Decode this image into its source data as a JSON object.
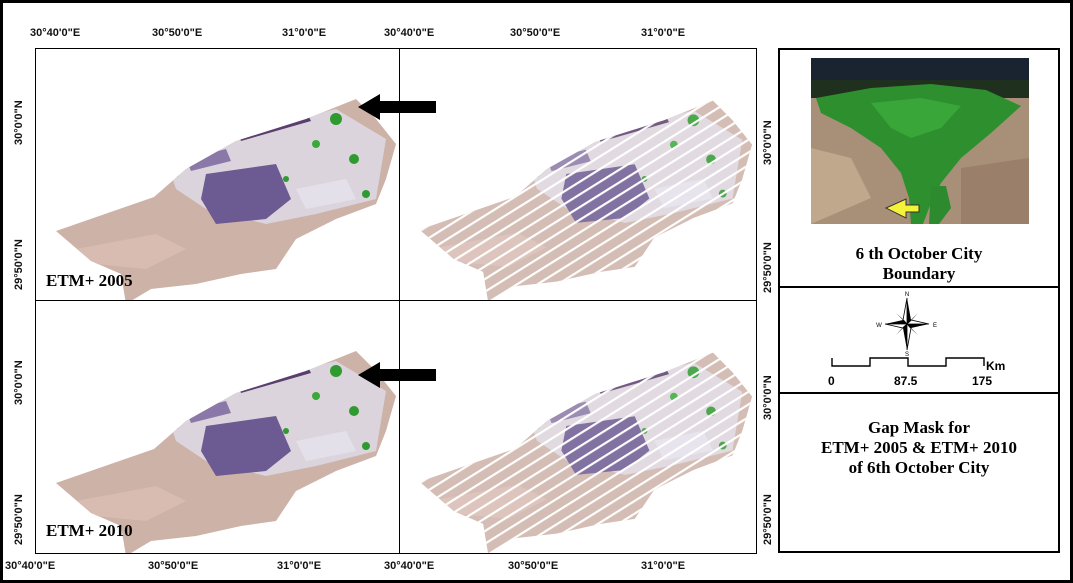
{
  "coords": {
    "top": [
      "30°40'0\"E",
      "30°50'0\"E",
      "31°0'0\"E",
      "30°40'0\"E",
      "30°50'0\"E",
      "31°0'0\"E"
    ],
    "bottom": [
      "30°40'0\"E",
      "30°50'0\"E",
      "31°0'0\"E",
      "30°40'0\"E",
      "30°50'0\"E",
      "31°0'0\"E"
    ],
    "left": [
      "30°0'0\"N",
      "29°50'0\"N",
      "30°0'0\"N",
      "29°50'0\"N"
    ],
    "right": [
      "30°0'0\"N",
      "29°50'0\"N",
      "30°0'0\"N",
      "29°50'0\"N"
    ]
  },
  "panels": {
    "top_left_label": "ETM+ 2005",
    "bottom_left_label": "ETM+ 2010"
  },
  "location_map": {
    "title_line1": "6 th October City",
    "title_line2": "Boundary"
  },
  "compass": {
    "n": "N",
    "s": "S",
    "e": "E",
    "w": "W"
  },
  "scale_bar": {
    "unit": "Km",
    "ticks": [
      "0",
      "87.5",
      "175"
    ]
  },
  "description": {
    "line1": "Gap Mask for",
    "line2": "ETM+ 2005 & ETM+ 2010",
    "line3": "of 6th October City"
  },
  "colors": {
    "arrow": "#000000",
    "vegetation": "#2f9a2f",
    "desert": "#c9a89a",
    "urban": "#6c5a92"
  }
}
